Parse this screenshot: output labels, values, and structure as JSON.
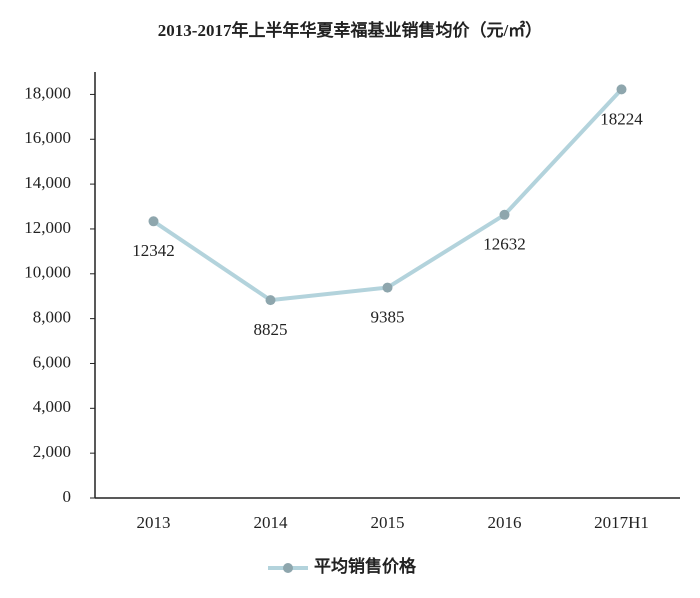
{
  "chart_data": {
    "type": "line",
    "title": "2013-2017年上半年华夏幸福基业销售均价（元/㎡）",
    "categories": [
      "2013",
      "2014",
      "2015",
      "2016",
      "2017H1"
    ],
    "series": [
      {
        "name": "平均销售价格",
        "line_color": "#b3d3dc",
        "marker_color": "#8ea6ad",
        "values": [
          12342,
          8825,
          9385,
          12632,
          18224
        ]
      }
    ],
    "ylim": [
      0,
      19000
    ],
    "yticks": [
      0,
      {
        "value": 2000,
        "label": "2,000"
      },
      {
        "value": 4000,
        "label": "4,000"
      },
      {
        "value": 6000,
        "label": "6,000"
      },
      {
        "value": 8000,
        "label": "8,000"
      },
      {
        "value": 10000,
        "label": "10,000"
      },
      {
        "value": 12000,
        "label": "12,000"
      },
      {
        "value": 14000,
        "label": "14,000"
      },
      {
        "value": 16000,
        "label": "16,000"
      },
      {
        "value": 18000,
        "label": "18,000"
      }
    ],
    "grid": false,
    "legend": "bottom"
  }
}
